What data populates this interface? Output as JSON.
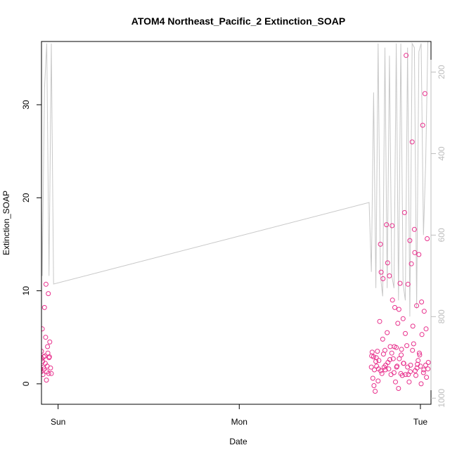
{
  "chart_data": {
    "type": "scatter",
    "title": "ATOM4 Northeast_Pacific_2 Extinction_SOAP",
    "xlabel": "Date",
    "ylabel": "Extinction_SOAP",
    "x_ticks": [
      "Sun",
      "Mon",
      "Tue"
    ],
    "y_ticks": [
      "0",
      "10",
      "20",
      "30"
    ],
    "y2_ticks": [
      "200",
      "400",
      "600",
      "800",
      "1000"
    ],
    "xlim_hours": [
      -2.2,
      49.4
    ],
    "ylim": [
      -2.2,
      36.8
    ],
    "y2lim": [
      1015,
      125
    ],
    "y2_reversed": true,
    "grid": false,
    "point_color": "#e8308c",
    "line_color": "#c8c8c8",
    "series": [
      {
        "type": "scatter",
        "x_hours": [
          -2.8,
          -2.7,
          -2.6,
          -2.5,
          -2.4,
          -2.3,
          -2.2,
          -2.1,
          -2.0,
          -1.9,
          -1.8,
          -1.7,
          -1.6,
          -1.5,
          -1.4,
          -1.3,
          -1.2,
          -1.1,
          -1.0,
          -0.9,
          -2.75,
          -2.55,
          -2.35,
          -2.15,
          -1.95,
          -1.75,
          -1.55,
          -1.35,
          -1.15,
          -2.65,
          -2.45,
          -2.25,
          -2.05,
          -1.85,
          -1.65,
          -1.45,
          -1.25
        ],
        "y": [
          2.3,
          4.7,
          1.2,
          6.0,
          2.8,
          1.6,
          3.5,
          5.9,
          1.0,
          2.9,
          8.2,
          2.2,
          10.7,
          1.3,
          4.0,
          9.7,
          2.8,
          4.5,
          1.7,
          1.1,
          2.0,
          4.8,
          1.5,
          2.7,
          1.8,
          3.0,
          0.4,
          3.3,
          2.9,
          0.6,
          1.8,
          1.3,
          2.4,
          1.6,
          5.0,
          1.9,
          1.1
        ]
      },
      {
        "type": "scatter",
        "x_hours": [
          41.5,
          41.6,
          41.7,
          41.8,
          41.9,
          42.0,
          42.1,
          42.2,
          42.3,
          42.4,
          42.5,
          42.6,
          42.7,
          42.8,
          42.9,
          43.0,
          43.1,
          43.2,
          43.3,
          43.4,
          43.5,
          43.6,
          43.7,
          43.8,
          43.9,
          44.0,
          44.1,
          44.2,
          44.3,
          44.4,
          44.5,
          44.6,
          44.7,
          44.8,
          44.9,
          45.0,
          45.1,
          45.2,
          45.3,
          45.4,
          45.5,
          45.6,
          45.7,
          45.8,
          45.9,
          46.0,
          46.1,
          46.2,
          46.3,
          46.4,
          46.5,
          46.6,
          46.7,
          46.8,
          46.9,
          47.0,
          47.1,
          47.2,
          47.3,
          47.4,
          47.5,
          47.6,
          47.7,
          47.8,
          47.9,
          48.0,
          48.1,
          48.2,
          48.3,
          48.4,
          48.5,
          48.6,
          48.7,
          48.8,
          48.9,
          49.0,
          41.55,
          41.85,
          42.15,
          42.45,
          42.75,
          43.05,
          43.35,
          43.65,
          43.95,
          44.25,
          44.55,
          44.85,
          45.15,
          45.45,
          45.75,
          46.05,
          46.35,
          46.65,
          46.95,
          47.25,
          47.55,
          47.85,
          48.15,
          48.45,
          48.75,
          49.05
        ],
        "y": [
          1.8,
          3.4,
          0.6,
          2.9,
          1.5,
          -0.8,
          2.4,
          1.9,
          3.5,
          0.3,
          2.5,
          6.7,
          15.0,
          12.0,
          1.1,
          4.8,
          3.2,
          1.8,
          3.6,
          2.0,
          17.1,
          5.5,
          2.3,
          1.6,
          11.6,
          4.0,
          1.0,
          3.3,
          9.0,
          2.7,
          1.2,
          8.2,
          0.2,
          3.9,
          1.9,
          6.5,
          -0.5,
          2.7,
          10.8,
          1.1,
          3.7,
          0.9,
          7.0,
          2.2,
          18.4,
          5.4,
          35.3,
          4.1,
          1.8,
          1.0,
          0.2,
          15.4,
          2.0,
          12.9,
          26.0,
          6.2,
          4.3,
          16.6,
          1.4,
          0.9,
          8.4,
          2.1,
          2.5,
          13.9,
          3.1,
          1.9,
          0.0,
          5.3,
          27.8,
          1.2,
          7.8,
          31.2,
          2.0,
          0.7,
          15.6,
          1.6,
          3.0,
          -0.2,
          2.8,
          1.6,
          1.4,
          11.3,
          1.5,
          13.0,
          2.6,
          17.0,
          4.0,
          1.8,
          8.0,
          3.1,
          2.2,
          1.0,
          10.7,
          1.3,
          3.6,
          14.1,
          1.7,
          3.3,
          8.8,
          1.5,
          5.9,
          2.3
        ]
      },
      {
        "type": "line",
        "axis": "secondary",
        "x_hours": [
          -3.0,
          -2.7,
          -2.4,
          -2.1,
          -1.8,
          -1.5,
          -1.2,
          -0.9,
          -0.6,
          41.2,
          41.5,
          41.8,
          42.1,
          42.4,
          42.7,
          43.0,
          43.3,
          43.6,
          43.9,
          44.2,
          44.5,
          44.8,
          45.1,
          45.4,
          45.7,
          46.0,
          46.3,
          46.6,
          46.9,
          47.2,
          47.5,
          47.8,
          48.1,
          48.4,
          48.7,
          49.0
        ],
        "y2": [
          720,
          360,
          140,
          700,
          240,
          130,
          700,
          130,
          720,
          520,
          690,
          250,
          730,
          130,
          700,
          750,
          140,
          730,
          160,
          700,
          730,
          130,
          760,
          130,
          720,
          760,
          140,
          800,
          130,
          140,
          780,
          150,
          130,
          600,
          420,
          110
        ]
      }
    ]
  }
}
